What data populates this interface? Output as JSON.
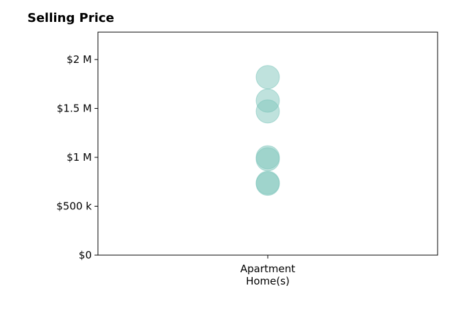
{
  "chart_data": {
    "type": "scatter",
    "title": "Selling Price",
    "xlabel": "",
    "ylabel": "",
    "categories": [
      "Apartment Home(s)"
    ],
    "category_lines": [
      [
        "Apartment",
        "Home(s)"
      ]
    ],
    "ylim": [
      0,
      2280000
    ],
    "yticks": [
      {
        "value": 0,
        "label": "$0"
      },
      {
        "value": 500000,
        "label": "$500 k"
      },
      {
        "value": 1000000,
        "label": "$1 M"
      },
      {
        "value": 1500000,
        "label": "$1.5 M"
      },
      {
        "value": 2000000,
        "label": "$2 M"
      }
    ],
    "grid": false,
    "series": [
      {
        "category": "Apartment Home(s)",
        "values": [
          1820000,
          1580000,
          1470000,
          1000000,
          980000,
          740000,
          730000
        ]
      }
    ],
    "point_color": "#7fc6bc",
    "point_opacity": 0.5
  }
}
